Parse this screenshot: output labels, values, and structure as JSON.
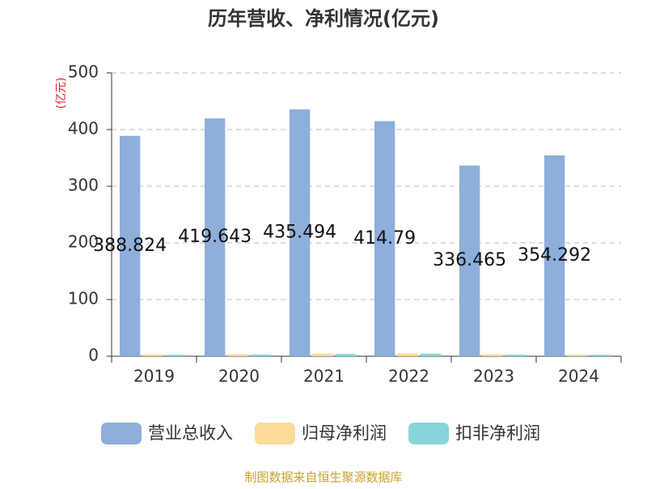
{
  "chart_data": {
    "type": "bar",
    "title": "历年营收、净利情况(亿元)",
    "y_label": "(亿元)",
    "categories": [
      "2019",
      "2020",
      "2021",
      "2022",
      "2023",
      "2024"
    ],
    "series": [
      {
        "name": "营业总收入",
        "color": "#8eaedb",
        "values": [
          388.824,
          419.643,
          435.494,
          414.79,
          336.465,
          354.292
        ],
        "show_labels": true
      },
      {
        "name": "归母净利润",
        "color": "#fdd99a",
        "values": [
          3.2,
          3.6,
          4.5,
          5.0,
          3.3,
          3.0
        ],
        "show_labels": false
      },
      {
        "name": "扣非净利润",
        "color": "#86d6d9",
        "values": [
          2.6,
          3.0,
          3.9,
          4.4,
          2.8,
          2.5
        ],
        "show_labels": false
      }
    ],
    "ylim": [
      0,
      500
    ],
    "yticks": [
      0,
      100,
      200,
      300,
      400,
      500
    ],
    "grid": true,
    "source": "制图数据来自恒生聚源数据库"
  }
}
